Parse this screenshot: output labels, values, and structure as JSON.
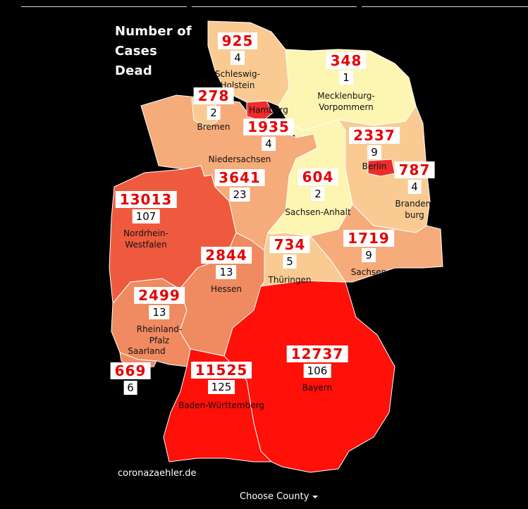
{
  "legend": {
    "line1": "Number of",
    "line2": "Cases",
    "line3": "Dead"
  },
  "colors": {
    "very_low": "#fdf5b2",
    "low": "#f9cb93",
    "medium_low": "#f5ab7a",
    "medium": "#f08a60",
    "high": "#ef5a3e",
    "very_high": "#ff1008",
    "city_high": "#ee2d2b"
  },
  "states": [
    {
      "key": "sh",
      "name": "Schleswig-\nHolstein",
      "cases": "925",
      "dead": "4",
      "level": "low"
    },
    {
      "key": "mv",
      "name": "Mecklenburg-\nVorpommern",
      "cases": "348",
      "dead": "1",
      "level": "very_low"
    },
    {
      "key": "hb",
      "name": "Bremen",
      "cases": "278",
      "dead": "2",
      "level": "low"
    },
    {
      "key": "hh",
      "name": "Hamburg",
      "cases": "1935",
      "dead": "4",
      "level": "city_high"
    },
    {
      "key": "ni",
      "name": "Niedersachsen",
      "cases": "3641",
      "dead": "23",
      "level": "medium_low"
    },
    {
      "key": "be",
      "name": "Berlin",
      "cases": "2337",
      "dead": "9",
      "level": "city_high"
    },
    {
      "key": "bb",
      "name": "Branden-\nburg",
      "cases": "787",
      "dead": "4",
      "level": "low"
    },
    {
      "key": "st",
      "name": "Sachsen-Anhalt",
      "cases": "604",
      "dead": "2",
      "level": "very_low"
    },
    {
      "key": "nw",
      "name": "Nordrhein-\nWestfalen",
      "cases": "13013",
      "dead": "107",
      "level": "high"
    },
    {
      "key": "he",
      "name": "Hessen",
      "cases": "2844",
      "dead": "13",
      "level": "medium"
    },
    {
      "key": "th",
      "name": "Thüringen",
      "cases": "734",
      "dead": "5",
      "level": "low"
    },
    {
      "key": "sn",
      "name": "Sachsen",
      "cases": "1719",
      "dead": "9",
      "level": "medium_low"
    },
    {
      "key": "rp",
      "name": "Rheinland-\nPfalz",
      "cases": "2499",
      "dead": "13",
      "level": "medium"
    },
    {
      "key": "sl",
      "name": "Saarland",
      "cases": "669",
      "dead": "6",
      "level": "medium"
    },
    {
      "key": "bw",
      "name": "Baden-Württemberg",
      "cases": "11525",
      "dead": "125",
      "level": "very_high"
    },
    {
      "key": "by",
      "name": "Bayern",
      "cases": "12737",
      "dead": "106",
      "level": "very_high"
    }
  ],
  "footer": {
    "credit": "coronazaehler.de",
    "county_button": "Choose County"
  }
}
